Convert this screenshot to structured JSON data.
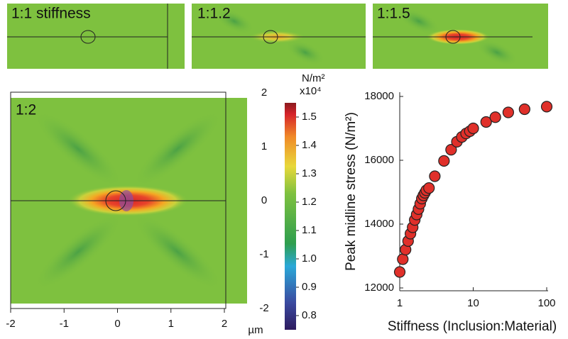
{
  "chart_data": [
    {
      "type": "heatmap",
      "title": "1:1 stiffness"
    },
    {
      "type": "heatmap",
      "title": "1:1.2"
    },
    {
      "type": "heatmap",
      "title": "1:1.5"
    },
    {
      "type": "heatmap",
      "title": "1:2",
      "xlim": [
        -2,
        2
      ],
      "xticks": [
        -2,
        -1,
        0,
        1,
        2
      ],
      "xlabel": "µm",
      "ylim": [
        -2,
        2
      ],
      "yticks": [
        -2,
        -1,
        0,
        1,
        2
      ],
      "colorbar": {
        "label": "N/m²",
        "multiplier": "x10⁴",
        "lim": [
          0.75,
          1.55
        ],
        "ticks": [
          1.5,
          1.4,
          1.3,
          1.2,
          1.1,
          {
            "value": 1,
            "label": "1.0"
          },
          0.9,
          0.8
        ]
      }
    },
    {
      "type": "scatter",
      "color": "#e0302a",
      "log_x": true,
      "xlabel": "Stiffness (Inclusion:Material)",
      "ylabel": "Peak midline stress (N/m²)",
      "xlim": [
        1,
        100
      ],
      "xticks": [
        1,
        10,
        100
      ],
      "ylim": [
        12000,
        18000
      ],
      "yticks": [
        12000,
        14000,
        16000,
        18000
      ],
      "x": [
        1,
        1.1,
        1.2,
        1.3,
        1.4,
        1.5,
        1.6,
        1.7,
        1.8,
        1.9,
        2,
        2.1,
        2.2,
        2.3,
        2.5,
        3,
        4,
        5,
        6,
        7,
        8,
        9,
        10,
        15,
        20,
        30,
        50,
        100
      ],
      "values": [
        12500,
        12900,
        13200,
        13470,
        13700,
        13900,
        14130,
        14300,
        14470,
        14640,
        14800,
        14900,
        14980,
        15060,
        15130,
        15500,
        15980,
        16330,
        16580,
        16730,
        16840,
        16910,
        17000,
        17200,
        17350,
        17500,
        17600,
        17680
      ]
    }
  ]
}
